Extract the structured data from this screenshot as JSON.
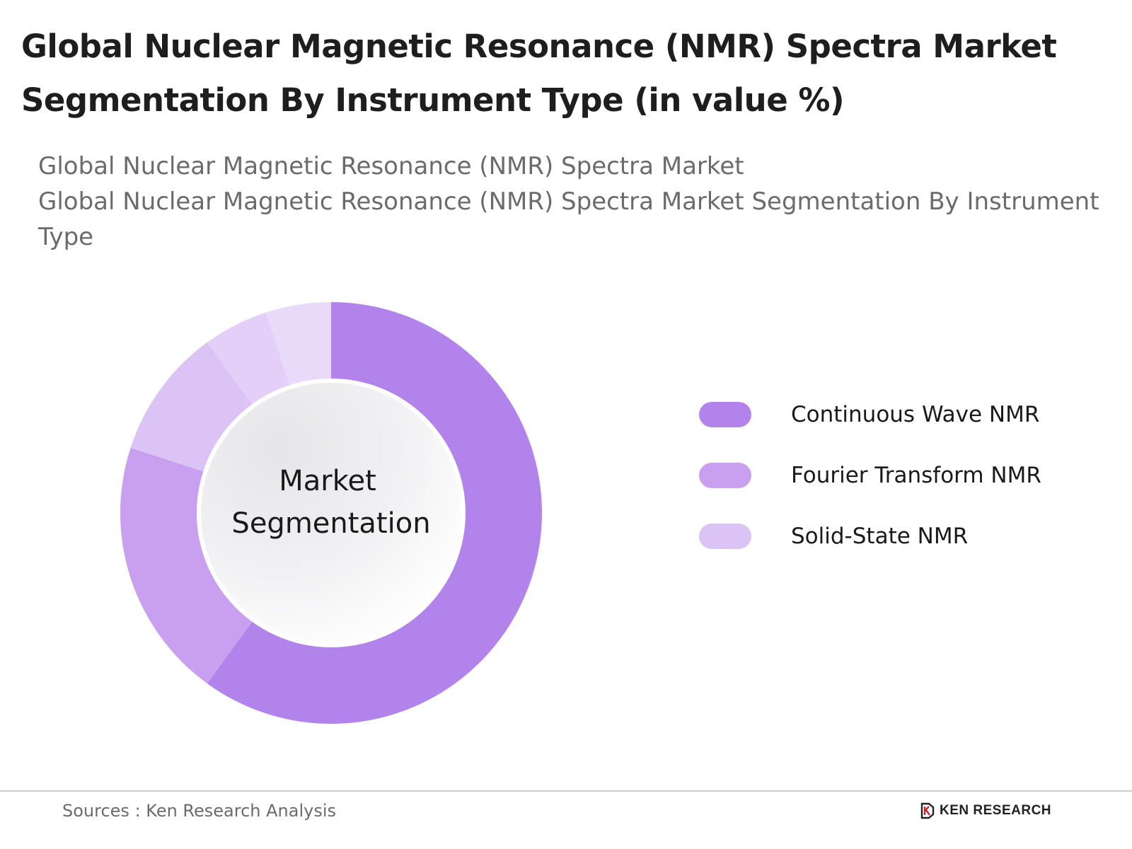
{
  "title": "Global Nuclear Magnetic Resonance (NMR) Spectra Market Segmentation By Instrument Type (in value %)",
  "subtitle_lines": [
    "Global Nuclear Magnetic Resonance (NMR) Spectra Market",
    "Global Nuclear Magnetic Resonance (NMR) Spectra Market Segmentation By Instrument Type"
  ],
  "chart_data": {
    "type": "pie",
    "title": "Global Nuclear Magnetic Resonance (NMR) Spectra Market Segmentation By Instrument Type (in value %)",
    "center_label_lines": [
      "Market",
      "Segmentation"
    ],
    "series": [
      {
        "name": "Continuous Wave NMR",
        "value": 60,
        "color": "#b383ec"
      },
      {
        "name": "Fourier Transform NMR",
        "value": 20,
        "color": "#c9a0f0"
      },
      {
        "name": "Solid-State NMR",
        "value": 10,
        "color": "#dcc3f6"
      },
      {
        "value": 5,
        "color": "#e3cff7"
      },
      {
        "value": 5,
        "color": "#e9dafa"
      }
    ],
    "legend_position": "right"
  },
  "legend": [
    {
      "label": "Continuous Wave NMR",
      "color": "#b383ec"
    },
    {
      "label": "Fourier Transform NMR",
      "color": "#c9a0f0"
    },
    {
      "label": "Solid-State NMR",
      "color": "#dcc3f6"
    }
  ],
  "footer": {
    "source": "Sources : Ken Research Analysis",
    "brand": "KEN RESEARCH"
  }
}
